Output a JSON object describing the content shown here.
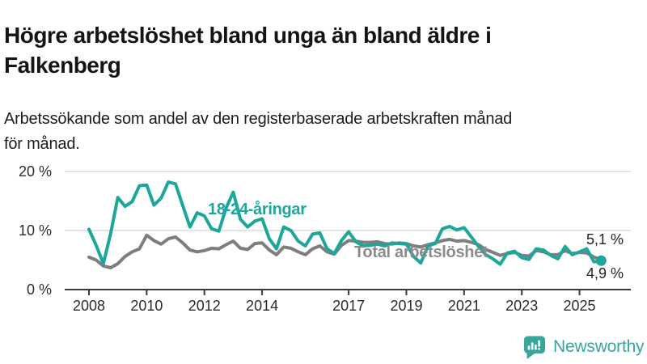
{
  "header": {
    "title": "Högre arbetslöshet bland unga än bland äldre i\nFalkenberg",
    "subtitle": "Arbetssökande som andel av den registerbaserade arbetskraften månad\nför månad."
  },
  "chart_data": {
    "type": "line",
    "title": "Högre arbetslöshet bland unga än bland äldre i Falkenberg",
    "subtitle": "Arbetssökande som andel av den registerbaserade arbetskraften månad för månad.",
    "unit": "%",
    "xlabel": "",
    "ylabel": "",
    "xlim": [
      2007.4,
      2026.7
    ],
    "ylim": [
      0,
      21.5
    ],
    "grid": "horizontal",
    "legend_position": "inline-labels",
    "x_ticks": [
      2008,
      2010,
      2012,
      2014,
      2017,
      2019,
      2021,
      2023,
      2025
    ],
    "x_tick_labels": [
      "2008",
      "2010",
      "2012",
      "2014",
      "2017",
      "2019",
      "2021",
      "2023",
      "2025"
    ],
    "y_ticks": [
      0,
      10,
      20
    ],
    "y_tick_labels": [
      "0 %",
      "10 %",
      "20 %"
    ],
    "x": [
      2008,
      2008.25,
      2008.5,
      2008.75,
      2009,
      2009.25,
      2009.5,
      2009.75,
      2010,
      2010.25,
      2010.5,
      2010.75,
      2011,
      2011.25,
      2011.5,
      2011.75,
      2012,
      2012.25,
      2012.5,
      2012.75,
      2013,
      2013.25,
      2013.5,
      2013.75,
      2014,
      2014.25,
      2014.5,
      2014.75,
      2015,
      2015.25,
      2015.5,
      2015.75,
      2016,
      2016.25,
      2016.5,
      2016.75,
      2017,
      2017.25,
      2017.5,
      2017.75,
      2018,
      2018.25,
      2018.5,
      2018.75,
      2019,
      2019.25,
      2019.5,
      2019.75,
      2020,
      2020.25,
      2020.5,
      2020.75,
      2021,
      2021.25,
      2021.5,
      2021.75,
      2022,
      2022.25,
      2022.5,
      2022.75,
      2023,
      2023.25,
      2023.5,
      2023.75,
      2024,
      2024.25,
      2024.5,
      2024.75,
      2025,
      2025.25,
      2025.5,
      2025.75
    ],
    "series": [
      {
        "name": "Total arbetslöshet",
        "color": "#7e7e7e",
        "end_label": "5,1 %",
        "end_value": 5.1,
        "dot_radius": 5,
        "values": [
          5.5,
          5.0,
          4.0,
          3.7,
          4.4,
          5.6,
          6.4,
          6.9,
          9.2,
          8.3,
          7.7,
          8.6,
          8.9,
          7.9,
          6.7,
          6.4,
          6.6,
          7.0,
          6.9,
          7.6,
          8.2,
          7.0,
          6.8,
          7.8,
          7.9,
          6.7,
          5.9,
          7.2,
          7.0,
          6.4,
          5.9,
          6.9,
          7.4,
          6.4,
          6.0,
          7.5,
          8.3,
          8.2,
          8.0,
          8.0,
          8.1,
          7.8,
          7.7,
          7.9,
          7.8,
          7.4,
          7.2,
          7.6,
          7.9,
          8.3,
          8.5,
          8.2,
          8.3,
          8.0,
          7.6,
          6.8,
          6.3,
          5.8,
          6.1,
          6.3,
          5.8,
          5.7,
          6.6,
          6.4,
          5.9,
          5.9,
          6.6,
          6.1,
          6.3,
          6.2,
          5.5,
          5.1
        ]
      },
      {
        "name": "18-24-åringar",
        "color": "#1da69a",
        "end_label": "4,9 %",
        "end_value": 4.9,
        "dot_radius": 6.5,
        "values": [
          10.2,
          7.5,
          4.4,
          9.5,
          15.6,
          14.1,
          14.9,
          17.6,
          17.7,
          14.3,
          15.5,
          18.2,
          17.9,
          14.2,
          10.6,
          13.0,
          12.5,
          10.3,
          9.9,
          13.8,
          16.5,
          11.9,
          10.6,
          11.6,
          12.0,
          8.6,
          6.9,
          10.6,
          10.0,
          8.2,
          7.4,
          9.4,
          9.6,
          6.9,
          6.1,
          8.3,
          9.8,
          8.1,
          7.4,
          7.5,
          7.7,
          7.4,
          7.9,
          7.8,
          7.7,
          5.6,
          4.5,
          7.4,
          7.8,
          10.3,
          10.7,
          10.1,
          10.5,
          8.9,
          7.3,
          5.9,
          5.2,
          4.3,
          6.2,
          6.5,
          5.4,
          5.1,
          6.9,
          6.7,
          5.8,
          5.2,
          7.3,
          5.9,
          6.4,
          6.9,
          4.7,
          4.9
        ]
      }
    ]
  },
  "footer": {
    "brand": "Newsworthy"
  },
  "colors": {
    "teal_line": "#1da69a",
    "gray_line": "#7e7e7e",
    "logo_teal": "#3ba49c",
    "grid": "#dcdcdc",
    "axis": "#3a3a3a",
    "text": "#1c1c1c"
  }
}
